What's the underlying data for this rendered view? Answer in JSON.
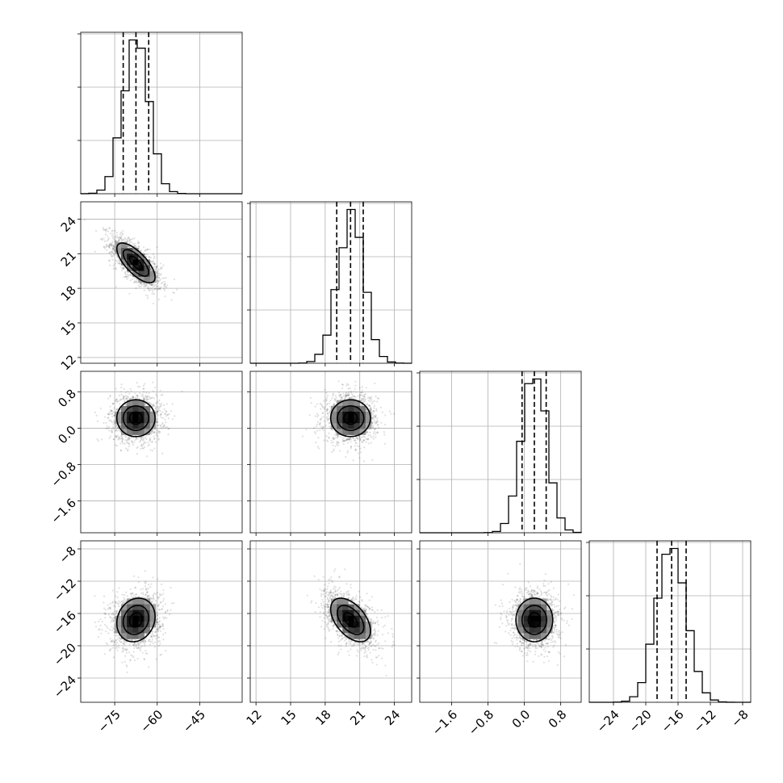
{
  "chart_data": {
    "type": "corner",
    "parameters": [
      {
        "range": [
          -87,
          -30
        ],
        "ticks": [
          -75,
          -60,
          -45
        ],
        "tick_labels": [
          "−75",
          "−60",
          "−45"
        ],
        "median": -67.5,
        "q16": -72.0,
        "q84": -63.0,
        "std": 4.5
      },
      {
        "range": [
          11.5,
          25.5
        ],
        "ticks": [
          12,
          15,
          18,
          21,
          24
        ],
        "tick_labels": [
          "12",
          "15",
          "18",
          "21",
          "24"
        ],
        "median": 20.2,
        "q16": 19.0,
        "q84": 21.3,
        "std": 1.15
      },
      {
        "range": [
          -2.3,
          1.25
        ],
        "ticks": [
          -1.6,
          -0.8,
          0.0,
          0.8
        ],
        "tick_labels": [
          "−1.6",
          "−0.8",
          "0.0",
          "0.8"
        ],
        "median": 0.22,
        "q16": -0.05,
        "q84": 0.48,
        "std": 0.27
      },
      {
        "range": [
          -27,
          -7
        ],
        "ticks": [
          -24,
          -20,
          -16,
          -12,
          -8
        ],
        "tick_labels": [
          "−24",
          "−20",
          "−16",
          "−12",
          "−8"
        ],
        "median": -16.8,
        "q16": -18.6,
        "q84": -15.0,
        "std": 1.8
      }
    ],
    "correlations": [
      [
        0,
        1,
        -0.72
      ],
      [
        0,
        2,
        0.0
      ],
      [
        0,
        3,
        0.15
      ],
      [
        1,
        2,
        0.0
      ],
      [
        1,
        3,
        -0.5
      ],
      [
        2,
        3,
        0.0
      ]
    ],
    "quantiles": [
      0.16,
      0.5,
      0.84
    ],
    "contour_levels_sigma": [
      0.5,
      1.0,
      1.5
    ],
    "grid": true
  }
}
